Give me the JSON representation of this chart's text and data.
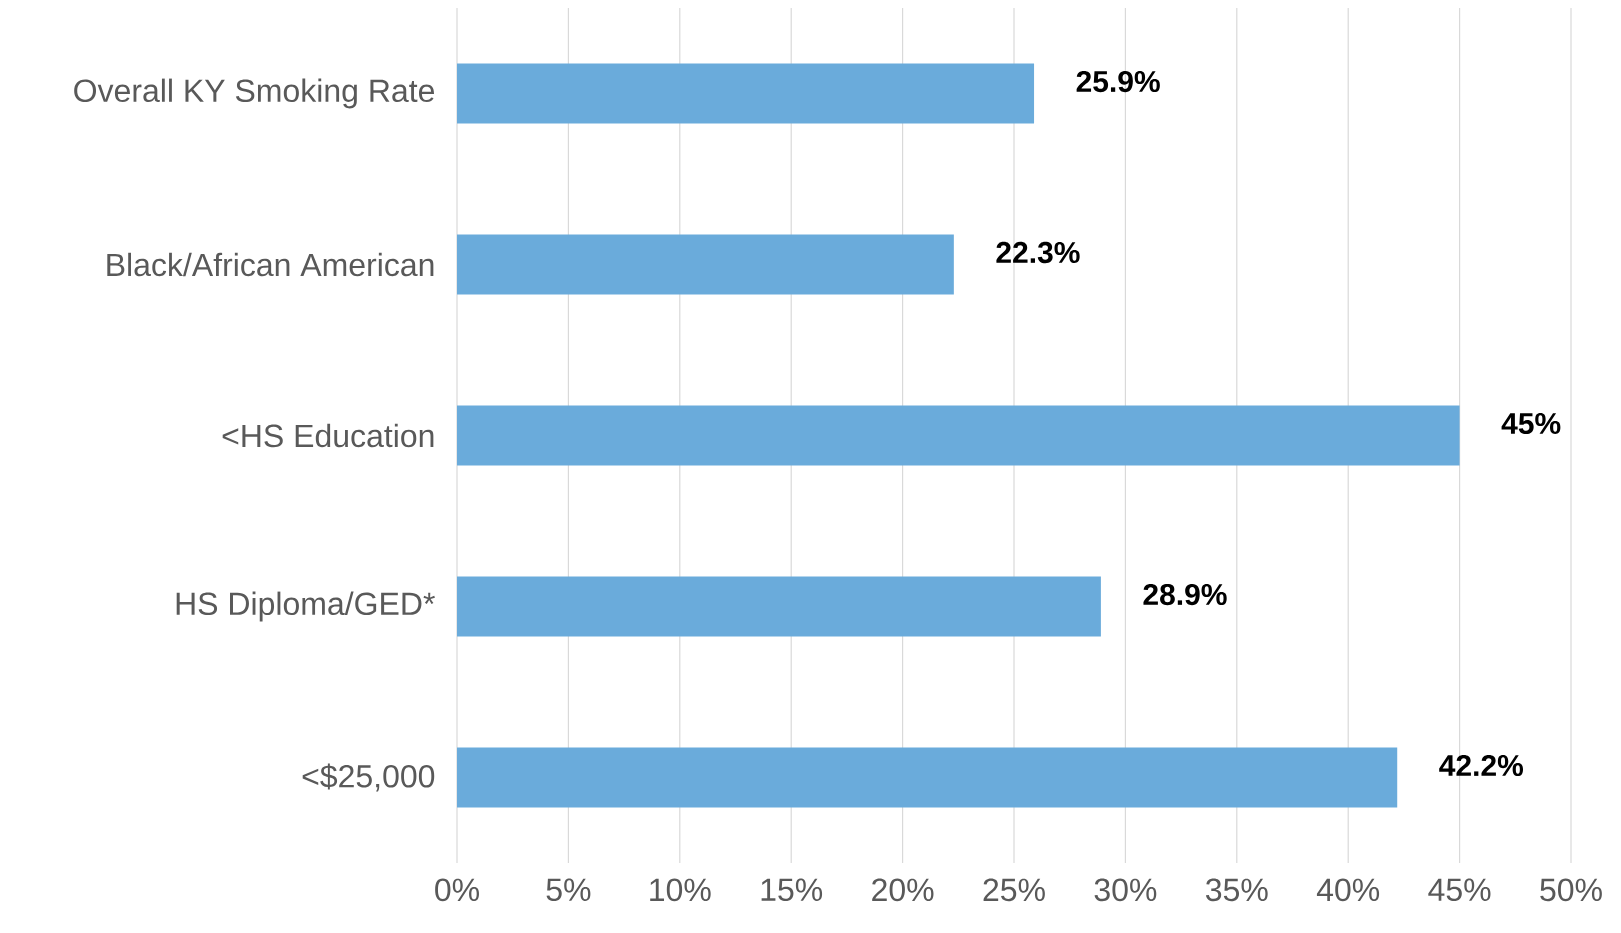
{
  "chart_data": {
    "type": "bar",
    "orientation": "horizontal",
    "categories": [
      "Overall KY Smoking Rate",
      "Black/African American",
      "<HS Education",
      "HS Diploma/GED*",
      "<$25,000"
    ],
    "values": [
      25.9,
      22.3,
      45,
      28.9,
      42.2
    ],
    "value_labels": [
      "25.9%",
      "22.3%",
      "45%",
      "28.9%",
      "42.2%"
    ],
    "color": "#6aabdb",
    "xlim": [
      0,
      50
    ],
    "xticks": [
      {
        "value": 0,
        "label": "0%"
      },
      {
        "value": 5,
        "label": "5%"
      },
      {
        "value": 10,
        "label": "10%"
      },
      {
        "value": 15,
        "label": "15%"
      },
      {
        "value": 20,
        "label": "20%"
      },
      {
        "value": 25,
        "label": "25%"
      },
      {
        "value": 30,
        "label": "30%"
      },
      {
        "value": 35,
        "label": "35%"
      },
      {
        "value": 40,
        "label": "40%"
      },
      {
        "value": 45,
        "label": "45%"
      },
      {
        "value": 50,
        "label": "50%"
      }
    ],
    "grid": "x"
  }
}
